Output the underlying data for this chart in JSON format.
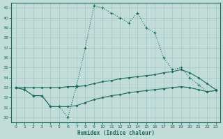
{
  "xlabel": "Humidex (Indice chaleur)",
  "bg_color": "#c2ddd8",
  "grid_color": "#9fc8c2",
  "line_color": "#1a6b60",
  "xlim": [
    -0.5,
    23.5
  ],
  "ylim": [
    29.5,
    41.5
  ],
  "yticks": [
    30,
    31,
    32,
    33,
    34,
    35,
    36,
    37,
    38,
    39,
    40,
    41
  ],
  "xticks": [
    0,
    1,
    2,
    3,
    4,
    5,
    6,
    7,
    8,
    9,
    10,
    11,
    12,
    13,
    14,
    15,
    16,
    17,
    18,
    19,
    20,
    21,
    22,
    23
  ],
  "series1_x": [
    0,
    1,
    2,
    3,
    4,
    5,
    6,
    7,
    8,
    9,
    10,
    11,
    12,
    13,
    14,
    15,
    16,
    17,
    18,
    19,
    20,
    21,
    22,
    23
  ],
  "series1_y": [
    33.0,
    32.8,
    32.2,
    32.2,
    31.1,
    31.1,
    30.0,
    33.2,
    37.0,
    41.2,
    41.0,
    40.5,
    40.0,
    39.5,
    40.5,
    39.0,
    38.5,
    36.0,
    34.8,
    35.0,
    34.0,
    33.3,
    32.6,
    32.7
  ],
  "series2_x": [
    0,
    1,
    2,
    3,
    4,
    5,
    6,
    7,
    8,
    9,
    10,
    11,
    12,
    13,
    14,
    15,
    16,
    17,
    18,
    19,
    20,
    21,
    22,
    23
  ],
  "series2_y": [
    33.0,
    33.0,
    33.0,
    33.0,
    33.0,
    33.0,
    33.1,
    33.1,
    33.2,
    33.4,
    33.6,
    33.7,
    33.9,
    34.0,
    34.1,
    34.2,
    34.3,
    34.5,
    34.6,
    34.8,
    34.5,
    34.0,
    33.4,
    32.8
  ],
  "series3_x": [
    0,
    1,
    2,
    3,
    4,
    5,
    6,
    7,
    8,
    9,
    10,
    11,
    12,
    13,
    14,
    15,
    16,
    17,
    18,
    19,
    20,
    21,
    22,
    23
  ],
  "series3_y": [
    33.0,
    32.8,
    32.2,
    32.2,
    31.1,
    31.1,
    31.1,
    31.2,
    31.5,
    31.8,
    32.0,
    32.2,
    32.3,
    32.5,
    32.6,
    32.7,
    32.8,
    32.9,
    33.0,
    33.1,
    33.0,
    32.8,
    32.6,
    32.7
  ]
}
